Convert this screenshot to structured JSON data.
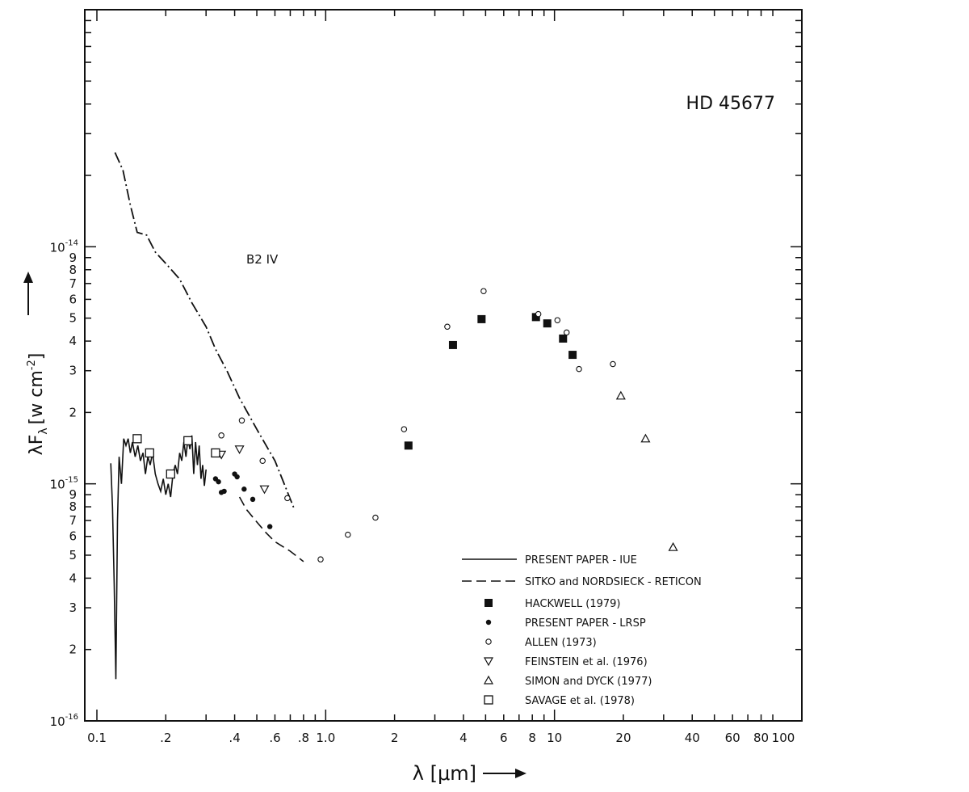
{
  "chart_data": {
    "type": "scatter",
    "title": "HD  45677",
    "spectral_type_label": "B2 IV",
    "xlabel": "λ [μm]",
    "ylabel": "λF",
    "ylabel_sub": "λ",
    "ylabel_units": "[w cm",
    "ylabel_units_exp": "-2",
    "ylabel_units_close": "]",
    "x_scale": "log",
    "y_scale": "log",
    "xlim": [
      0.1,
      100
    ],
    "ylim": [
      1e-16,
      1e-13
    ],
    "grid": false,
    "legend_position": "bottom-center",
    "x_tick_labels": [
      {
        "v": 0.1,
        "t": "0.1"
      },
      {
        "v": 0.2,
        "t": ".2"
      },
      {
        "v": 0.4,
        "t": ".4"
      },
      {
        "v": 0.6,
        "t": ".6"
      },
      {
        "v": 0.8,
        "t": ".8"
      },
      {
        "v": 1.0,
        "t": "1.0"
      },
      {
        "v": 2,
        "t": "2"
      },
      {
        "v": 4,
        "t": "4"
      },
      {
        "v": 6,
        "t": "6"
      },
      {
        "v": 8,
        "t": "8"
      },
      {
        "v": 10,
        "t": "10"
      },
      {
        "v": 20,
        "t": "20"
      },
      {
        "v": 40,
        "t": "40"
      },
      {
        "v": 60,
        "t": "60"
      },
      {
        "v": 80,
        "t": "80"
      },
      {
        "v": 100,
        "t": "100"
      }
    ],
    "y_decade_labels": [
      {
        "v": 1e-16,
        "base": "10",
        "exp": "-16"
      },
      {
        "v": 1e-15,
        "base": "10",
        "exp": "-15"
      },
      {
        "v": 1e-14,
        "base": "10",
        "exp": "-14"
      }
    ],
    "y_minor_labels": [
      {
        "v": 2e-16,
        "t": "2"
      },
      {
        "v": 3e-16,
        "t": "3"
      },
      {
        "v": 4e-16,
        "t": "4"
      },
      {
        "v": 5e-16,
        "t": "5"
      },
      {
        "v": 6e-16,
        "t": "6"
      },
      {
        "v": 7e-16,
        "t": "7"
      },
      {
        "v": 8e-16,
        "t": "8"
      },
      {
        "v": 9e-16,
        "t": "9"
      },
      {
        "v": 2e-15,
        "t": "2"
      },
      {
        "v": 3e-15,
        "t": "3"
      },
      {
        "v": 4e-15,
        "t": "4"
      },
      {
        "v": 5e-15,
        "t": "5"
      },
      {
        "v": 6e-15,
        "t": "6"
      },
      {
        "v": 7e-15,
        "t": "7"
      },
      {
        "v": 8e-15,
        "t": "8"
      },
      {
        "v": 9e-15,
        "t": "9"
      }
    ],
    "series": [
      {
        "name": "PRESENT PAPER - IUE",
        "style": "solid-line",
        "points": [
          [
            0.115,
            1.22e-15
          ],
          [
            0.117,
            8e-16
          ],
          [
            0.119,
            3.8e-16
          ],
          [
            0.121,
            1.5e-16
          ],
          [
            0.123,
            7e-16
          ],
          [
            0.125,
            1.3e-15
          ],
          [
            0.128,
            1e-15
          ],
          [
            0.131,
            1.55e-15
          ],
          [
            0.134,
            1.45e-15
          ],
          [
            0.137,
            1.55e-15
          ],
          [
            0.14,
            1.35e-15
          ],
          [
            0.143,
            1.5e-15
          ],
          [
            0.147,
            1.3e-15
          ],
          [
            0.151,
            1.45e-15
          ],
          [
            0.155,
            1.25e-15
          ],
          [
            0.159,
            1.35e-15
          ],
          [
            0.163,
            1.1e-15
          ],
          [
            0.167,
            1.3e-15
          ],
          [
            0.171,
            1.2e-15
          ],
          [
            0.175,
            1.35e-15
          ],
          [
            0.18,
            1.1e-15
          ],
          [
            0.185,
            1e-15
          ],
          [
            0.19,
            9.3e-16
          ],
          [
            0.195,
            1.05e-15
          ],
          [
            0.2,
            9e-16
          ],
          [
            0.205,
            1e-15
          ],
          [
            0.21,
            8.8e-16
          ],
          [
            0.215,
            1.1e-15
          ],
          [
            0.22,
            1.2e-15
          ],
          [
            0.225,
            1.1e-15
          ],
          [
            0.23,
            1.35e-15
          ],
          [
            0.235,
            1.25e-15
          ],
          [
            0.24,
            1.5e-15
          ],
          [
            0.245,
            1.3e-15
          ],
          [
            0.25,
            1.55e-15
          ],
          [
            0.255,
            1.4e-15
          ],
          [
            0.26,
            1.6e-15
          ],
          [
            0.265,
            1.1e-15
          ],
          [
            0.27,
            1.5e-15
          ],
          [
            0.275,
            1.2e-15
          ],
          [
            0.28,
            1.45e-15
          ],
          [
            0.285,
            1.05e-15
          ],
          [
            0.29,
            1.2e-15
          ],
          [
            0.295,
            9.8e-16
          ],
          [
            0.3,
            1.15e-15
          ]
        ]
      },
      {
        "name": "SITKO and NORDSIECK - RETICON",
        "style": "dashed-line",
        "points": [
          [
            0.42,
            8.8e-16
          ],
          [
            0.45,
            7.8e-16
          ],
          [
            0.5,
            6.9e-16
          ],
          [
            0.55,
            6.2e-16
          ],
          [
            0.6,
            5.7e-16
          ],
          [
            0.7,
            5.2e-16
          ],
          [
            0.8,
            4.7e-16
          ]
        ]
      },
      {
        "name": "HACKWELL (1979)",
        "marker": "filled-square",
        "points": [
          [
            2.3,
            1.45e-15
          ],
          [
            3.6,
            3.85e-15
          ],
          [
            4.8,
            4.95e-15
          ],
          [
            8.3,
            5.05e-15
          ],
          [
            9.3,
            4.75e-15
          ],
          [
            10.9,
            4.1e-15
          ],
          [
            12.0,
            3.5e-15
          ]
        ]
      },
      {
        "name": "PRESENT PAPER - LRSP",
        "marker": "filled-circle",
        "points": [
          [
            0.33,
            1.05e-15
          ],
          [
            0.34,
            1.02e-15
          ],
          [
            0.35,
            9.2e-16
          ],
          [
            0.36,
            9.3e-16
          ],
          [
            0.4,
            1.1e-15
          ],
          [
            0.41,
            1.07e-15
          ],
          [
            0.44,
            9.5e-16
          ],
          [
            0.48,
            8.6e-16
          ],
          [
            0.57,
            6.6e-16
          ]
        ]
      },
      {
        "name": "ALLEN (1973)",
        "marker": "open-circle",
        "points": [
          [
            0.35,
            1.6e-15
          ],
          [
            0.43,
            1.85e-15
          ],
          [
            0.53,
            1.25e-15
          ],
          [
            0.68,
            8.7e-16
          ],
          [
            0.95,
            4.8e-16
          ],
          [
            1.25,
            6.1e-16
          ],
          [
            1.65,
            7.2e-16
          ],
          [
            2.2,
            1.7e-15
          ],
          [
            3.4,
            4.6e-15
          ],
          [
            4.9,
            6.5e-15
          ],
          [
            8.5,
            5.2e-15
          ],
          [
            10.3,
            4.9e-15
          ],
          [
            11.3,
            4.35e-15
          ],
          [
            12.8,
            3.05e-15
          ],
          [
            18.0,
            3.2e-15
          ]
        ]
      },
      {
        "name": "FEINSTEIN et al. (1976)",
        "marker": "open-triangle-down",
        "points": [
          [
            0.35,
            1.33e-15
          ],
          [
            0.42,
            1.4e-15
          ],
          [
            0.54,
            9.5e-16
          ]
        ]
      },
      {
        "name": "SIMON and DYCK (1977)",
        "marker": "open-triangle-up",
        "points": [
          [
            19.5,
            2.35e-15
          ],
          [
            25.0,
            1.55e-15
          ],
          [
            33.0,
            5.4e-16
          ]
        ]
      },
      {
        "name": "SAVAGE et al. (1978)",
        "marker": "open-square",
        "points": [
          [
            0.15,
            1.55e-15
          ],
          [
            0.17,
            1.35e-15
          ],
          [
            0.21,
            1.1e-15
          ],
          [
            0.25,
            1.52e-15
          ],
          [
            0.33,
            1.35e-15
          ]
        ]
      }
    ],
    "model_curve": {
      "label": "B2 IV",
      "style": "dash-dot",
      "points": [
        [
          0.12,
          2.5e-14
        ],
        [
          0.13,
          2.1e-14
        ],
        [
          0.14,
          1.5e-14
        ],
        [
          0.15,
          1.15e-14
        ],
        [
          0.165,
          1.12e-14
        ],
        [
          0.18,
          9.5e-15
        ],
        [
          0.2,
          8.5e-15
        ],
        [
          0.23,
          7.3e-15
        ],
        [
          0.26,
          5.8e-15
        ],
        [
          0.3,
          4.6e-15
        ],
        [
          0.33,
          3.7e-15
        ],
        [
          0.37,
          3e-15
        ],
        [
          0.42,
          2.3e-15
        ],
        [
          0.5,
          1.7e-15
        ],
        [
          0.6,
          1.25e-15
        ],
        [
          0.73,
          7.8e-16
        ]
      ]
    }
  }
}
